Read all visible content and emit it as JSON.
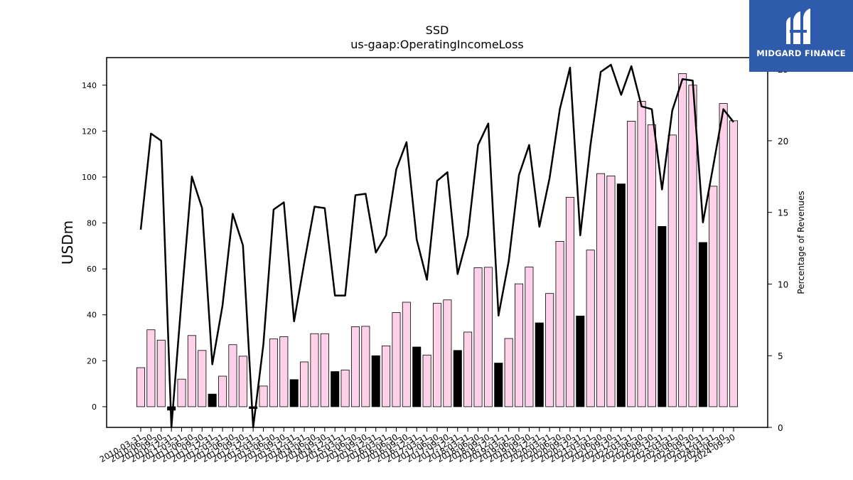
{
  "chart_data": {
    "type": "bar",
    "title": "SSD",
    "subtitle": "us-gaap:OperatingIncomeLoss",
    "ylabel": "USDm",
    "ylabel_right": "Percentage of Revenues",
    "ylim": [
      -9,
      152
    ],
    "ylim_right": [
      0,
      25.8
    ],
    "yticks": [
      0,
      20,
      40,
      60,
      80,
      100,
      120,
      140
    ],
    "yticks_right": [
      0,
      5,
      10,
      15,
      20,
      25
    ],
    "grid": false,
    "categories": [
      "2010-03-31",
      "2010-06-30",
      "2010-09-30",
      "2010-12-31",
      "2011-03-31",
      "2011-06-30",
      "2011-09-30",
      "2011-12-31",
      "2012-03-31",
      "2012-06-30",
      "2012-09-30",
      "2012-12-31",
      "2013-03-31",
      "2013-06-30",
      "2013-09-30",
      "2013-12-31",
      "2014-03-31",
      "2014-06-30",
      "2014-09-30",
      "2014-12-31",
      "2015-03-31",
      "2015-06-30",
      "2015-09-30",
      "2015-12-31",
      "2016-03-31",
      "2016-06-30",
      "2016-09-30",
      "2016-12-31",
      "2017-03-31",
      "2017-06-30",
      "2017-09-30",
      "2017-12-31",
      "2018-03-31",
      "2018-06-30",
      "2018-09-30",
      "2018-12-31",
      "2019-03-31",
      "2019-06-30",
      "2019-09-30",
      "2019-12-31",
      "2020-03-31",
      "2020-06-30",
      "2020-09-30",
      "2020-12-31",
      "2021-03-31",
      "2021-06-30",
      "2021-09-30",
      "2021-12-31",
      "2022-03-31",
      "2022-06-30",
      "2022-09-30",
      "2022-12-31",
      "2023-03-31",
      "2023-06-30",
      "2023-09-30",
      "2023-12-31",
      "2024-03-31",
      "2024-06-30",
      "2024-09-30"
    ],
    "series": [
      {
        "kind": "bar",
        "axis": "left",
        "values": [
          17,
          33.5,
          29,
          -1.5,
          12,
          31,
          24.5,
          5.5,
          13.3,
          27,
          22,
          -0.8,
          9,
          29.5,
          30.5,
          11.8,
          19.5,
          31.8,
          31.8,
          15.3,
          16,
          34.8,
          35,
          22.2,
          26.5,
          41,
          45.5,
          26,
          22.5,
          45,
          46.5,
          24.5,
          32.5,
          60.5,
          60.7,
          19,
          29.7,
          53.5,
          60.8,
          36.5,
          49.3,
          72,
          91.2,
          39.5,
          68.2,
          101.5,
          100.5,
          97,
          124.3,
          133,
          122.7,
          78.5,
          118.3,
          145,
          140,
          71.5,
          96,
          132,
          124.5
        ],
        "highlight_indices": [
          3,
          7,
          11,
          15,
          19,
          23,
          27,
          31,
          35,
          39,
          43,
          47,
          51,
          55
        ],
        "color_normal": "#ffd1e8",
        "color_highlight": "#000000"
      },
      {
        "kind": "line",
        "axis": "right",
        "values": [
          13.8,
          20.5,
          20,
          0,
          9,
          17.5,
          15.3,
          4.4,
          8.5,
          14.9,
          12.7,
          0,
          5.8,
          15.2,
          15.7,
          7.4,
          11.5,
          15.4,
          15.3,
          9.2,
          9.2,
          16.2,
          16.3,
          12.2,
          13.4,
          18,
          19.9,
          13.1,
          10.3,
          17.2,
          17.8,
          10.7,
          13.4,
          19.7,
          21.2,
          7.8,
          11.6,
          17.6,
          19.7,
          14,
          17.4,
          22.2,
          25.1,
          13.4,
          19.7,
          24.8,
          25.3,
          23.2,
          25.2,
          22.4,
          22.2,
          16.6,
          22.1,
          24.3,
          24.2,
          14.3,
          18.2,
          22.2,
          21.3
        ],
        "color": "#000000"
      }
    ]
  },
  "logo": {
    "text": "MIDGARD FINANCE",
    "background": "#2e5bab"
  }
}
